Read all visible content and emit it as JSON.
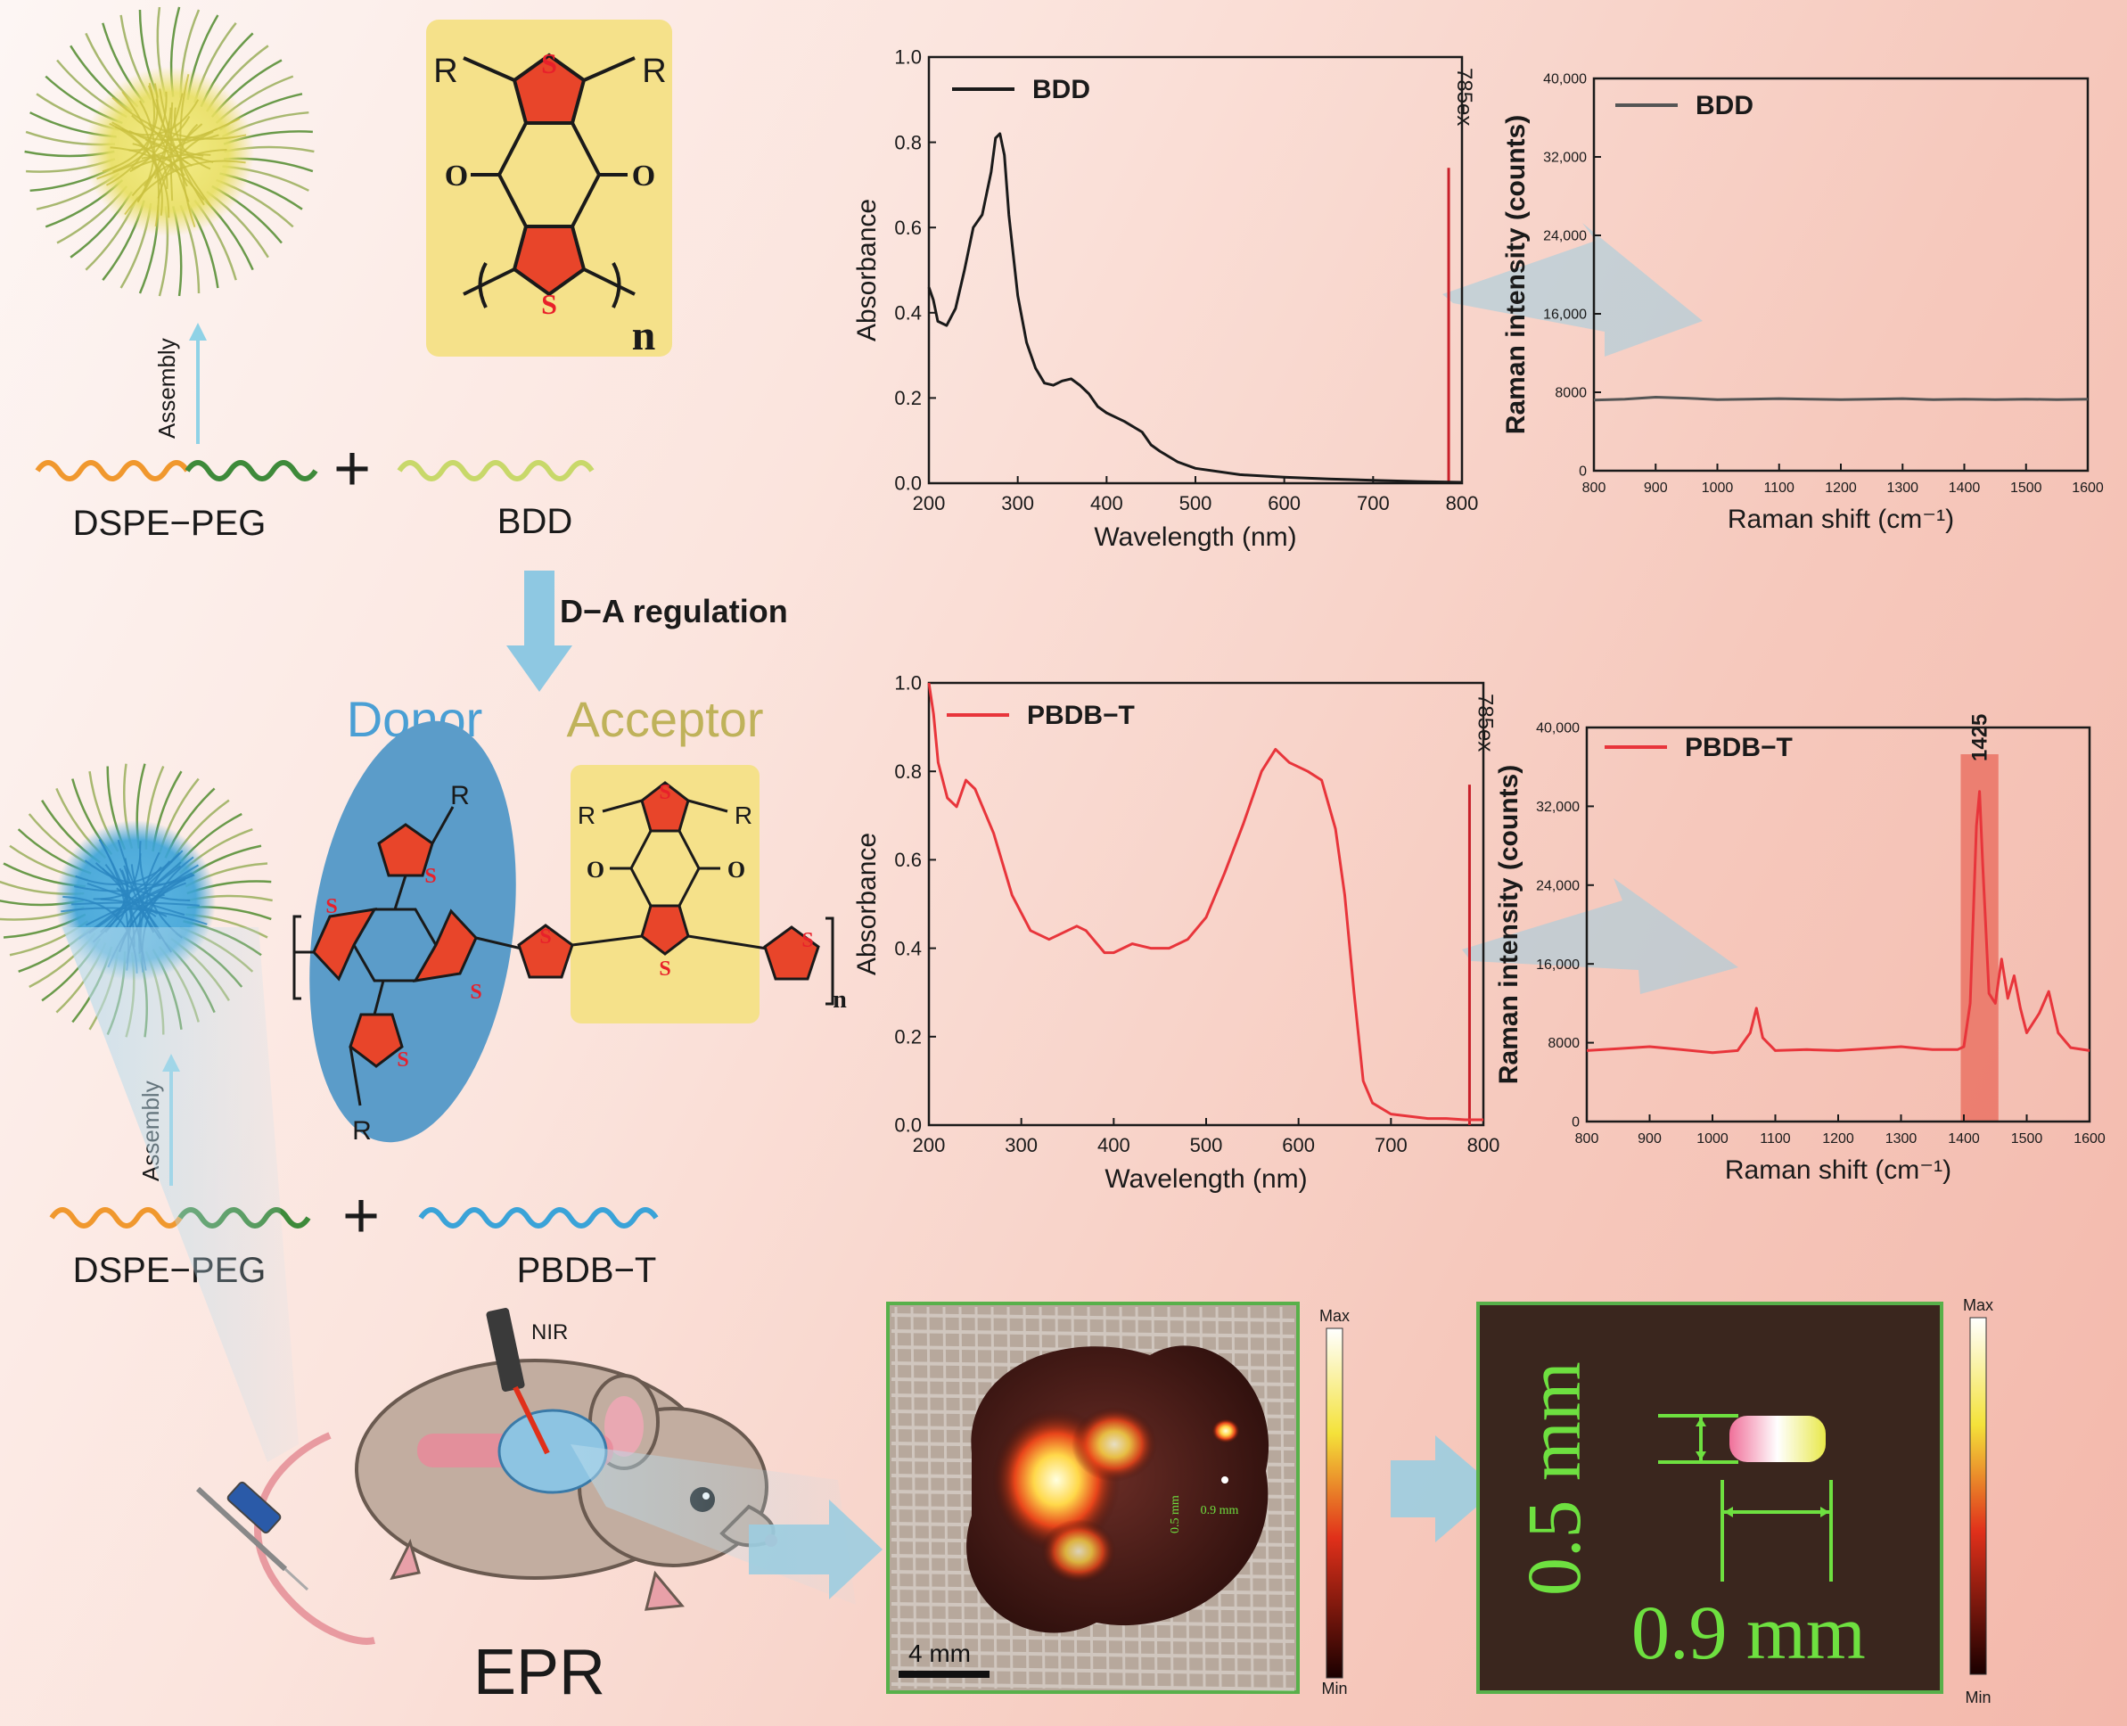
{
  "colors": {
    "bdd_line": "#1a1a1a",
    "pbdbt_line": "#e8353b",
    "laser_line": "#c8202a",
    "arrow": "#9ccde0",
    "acceptor_box": "#f5e18a",
    "donor_ellipse": "#5b9cc9",
    "donor_text": "#4a9fd4",
    "acceptor_text": "#bfb25a",
    "ring_red": "#e8452a",
    "scale_green": "#6ee040"
  },
  "schematic": {
    "dspe_peg_1": "DSPE−PEG",
    "bdd": "BDD",
    "assembly_1": "Assembly",
    "da_regulation": "D−A regulation",
    "donor": "Donor",
    "acceptor": "Acceptor",
    "dspe_peg_2": "DSPE−PEG",
    "pbdbt": "PBDB−T",
    "assembly_2": "Assembly",
    "nir": "NIR",
    "epr": "EPR",
    "plus_1": "+",
    "plus_2": "+"
  },
  "chem": {
    "r": "R",
    "s": "S",
    "o": "O",
    "n": "n"
  },
  "chart_data": [
    {
      "type": "line",
      "id": "bdd_absorbance",
      "xlabel": "Wavelength (nm)",
      "ylabel": "Absorbance",
      "xlim": [
        200,
        800
      ],
      "ylim": [
        0,
        1.0
      ],
      "xticks": [
        "200",
        "300",
        "400",
        "500",
        "600",
        "700",
        "800"
      ],
      "yticks": [
        "0.0",
        "0.2",
        "0.4",
        "0.6",
        "0.8",
        "1.0"
      ],
      "legend": "BDD",
      "laser_label": "785ex",
      "laser_x": 785,
      "laser_top": 0.74,
      "series": [
        {
          "name": "BDD",
          "x": [
            200,
            205,
            210,
            220,
            230,
            240,
            250,
            260,
            270,
            275,
            280,
            285,
            290,
            300,
            310,
            320,
            330,
            340,
            350,
            360,
            370,
            380,
            390,
            400,
            420,
            440,
            450,
            460,
            480,
            500,
            550,
            600,
            650,
            700,
            750,
            800
          ],
          "y": [
            0.46,
            0.43,
            0.38,
            0.37,
            0.41,
            0.5,
            0.6,
            0.63,
            0.73,
            0.81,
            0.82,
            0.77,
            0.63,
            0.44,
            0.33,
            0.27,
            0.235,
            0.23,
            0.24,
            0.245,
            0.23,
            0.21,
            0.18,
            0.165,
            0.145,
            0.12,
            0.09,
            0.075,
            0.05,
            0.035,
            0.02,
            0.014,
            0.01,
            0.007,
            0.004,
            0.002
          ]
        }
      ]
    },
    {
      "type": "line",
      "id": "bdd_raman",
      "xlabel": "Raman shift (cm⁻¹)",
      "ylabel": "Raman intensity (counts)",
      "xlim": [
        800,
        1600
      ],
      "ylim": [
        0,
        40000
      ],
      "xticks": [
        "800",
        "900",
        "1000",
        "1100",
        "1200",
        "1300",
        "1400",
        "1500",
        "1600"
      ],
      "yticks": [
        "0",
        "8000",
        "16,000",
        "24,000",
        "32,000",
        "40,000"
      ],
      "legend": "BDD",
      "series": [
        {
          "name": "BDD",
          "x": [
            800,
            850,
            900,
            950,
            1000,
            1050,
            1100,
            1150,
            1200,
            1250,
            1300,
            1350,
            1400,
            1450,
            1500,
            1550,
            1600
          ],
          "y": [
            7200,
            7300,
            7500,
            7400,
            7250,
            7300,
            7350,
            7300,
            7250,
            7300,
            7350,
            7250,
            7300,
            7250,
            7300,
            7250,
            7300
          ]
        }
      ]
    },
    {
      "type": "line",
      "id": "pbdbt_absorbance",
      "xlabel": "Wavelength (nm)",
      "ylabel": "Absorbance",
      "xlim": [
        200,
        800
      ],
      "ylim": [
        0,
        1.0
      ],
      "xticks": [
        "200",
        "300",
        "400",
        "500",
        "600",
        "700",
        "800"
      ],
      "yticks": [
        "0.0",
        "0.2",
        "0.4",
        "0.6",
        "0.8",
        "1.0"
      ],
      "legend": "PBDB−T",
      "laser_label": "785ex",
      "laser_x": 785,
      "laser_top": 0.77,
      "series": [
        {
          "name": "PBDB−T",
          "x": [
            200,
            205,
            210,
            220,
            230,
            240,
            250,
            270,
            290,
            310,
            330,
            350,
            360,
            370,
            390,
            400,
            420,
            440,
            460,
            480,
            500,
            520,
            540,
            560,
            575,
            590,
            610,
            625,
            640,
            650,
            660,
            670,
            680,
            700,
            720,
            740,
            760,
            780,
            800
          ],
          "y": [
            1.0,
            0.93,
            0.82,
            0.74,
            0.72,
            0.78,
            0.76,
            0.66,
            0.52,
            0.44,
            0.42,
            0.44,
            0.45,
            0.44,
            0.39,
            0.39,
            0.41,
            0.4,
            0.4,
            0.42,
            0.47,
            0.57,
            0.68,
            0.8,
            0.85,
            0.82,
            0.8,
            0.78,
            0.67,
            0.52,
            0.3,
            0.1,
            0.05,
            0.025,
            0.02,
            0.015,
            0.015,
            0.012,
            0.012
          ]
        }
      ]
    },
    {
      "type": "line",
      "id": "pbdbt_raman",
      "xlabel": "Raman shift (cm⁻¹)",
      "ylabel": "Raman intensity (counts)",
      "xlim": [
        800,
        1600
      ],
      "ylim": [
        0,
        40000
      ],
      "xticks": [
        "800",
        "900",
        "1000",
        "1100",
        "1200",
        "1300",
        "1400",
        "1500",
        "1600"
      ],
      "yticks": [
        "0",
        "8000",
        "16,000",
        "24,000",
        "32,000",
        "40,000"
      ],
      "legend": "PBDB−T",
      "peak_label": "1425",
      "highlight_range": [
        1395,
        1455
      ],
      "series": [
        {
          "name": "PBDB−T",
          "x": [
            800,
            850,
            900,
            950,
            1000,
            1040,
            1060,
            1070,
            1080,
            1100,
            1150,
            1200,
            1250,
            1300,
            1350,
            1390,
            1400,
            1410,
            1420,
            1425,
            1430,
            1440,
            1450,
            1460,
            1470,
            1480,
            1490,
            1500,
            1520,
            1535,
            1550,
            1570,
            1600
          ],
          "y": [
            7200,
            7400,
            7600,
            7300,
            7000,
            7200,
            9000,
            11500,
            8500,
            7200,
            7300,
            7200,
            7400,
            7600,
            7300,
            7300,
            7600,
            12000,
            30000,
            33500,
            26000,
            13000,
            12000,
            16500,
            12500,
            14800,
            11500,
            9000,
            11000,
            13200,
            9000,
            7500,
            7200
          ]
        }
      ]
    }
  ],
  "images": {
    "scale_bar_4mm": "4 mm",
    "small_0_5": "0.5 mm",
    "small_0_9": "0.9 mm",
    "big_0_5": "0.5 mm",
    "big_0_9": "0.9 mm",
    "cb1_max": "Max",
    "cb1_min": "Min",
    "cb2_max": "Max",
    "cb2_min": "Min"
  }
}
